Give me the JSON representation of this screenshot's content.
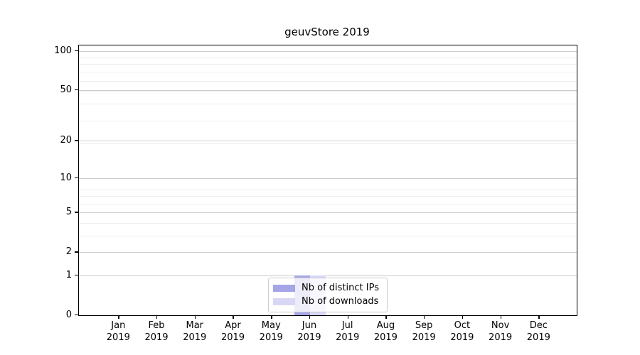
{
  "title": "geuvStore 2019",
  "chart_data": {
    "type": "bar",
    "title": "geuvStore 2019",
    "categories": [
      "Jan",
      "Feb",
      "Mar",
      "Apr",
      "May",
      "Jun",
      "Jul",
      "Aug",
      "Sep",
      "Oct",
      "Nov",
      "Dec"
    ],
    "category_year": "2019",
    "series": [
      {
        "name": "Nb of distinct IPs",
        "color": "#a5a5e7",
        "values": [
          0,
          0,
          0,
          0,
          0,
          1,
          0,
          0,
          0,
          0,
          0,
          0
        ]
      },
      {
        "name": "Nb of downloads",
        "color": "#d8d8f5",
        "values": [
          0,
          0,
          0,
          0,
          0,
          1,
          0,
          0,
          0,
          0,
          0,
          0
        ]
      }
    ],
    "yscale": "log1p",
    "ylim": [
      0,
      110
    ],
    "y_major_ticks": [
      0,
      1,
      2,
      5,
      10,
      20,
      50,
      100
    ],
    "y_minor_gridlines": [
      3,
      4,
      6,
      7,
      8,
      19,
      29,
      39,
      49,
      59,
      69,
      79,
      89
    ],
    "grid": true,
    "legend_position": "lower center"
  },
  "colors": {
    "spine": "#000000",
    "major_grid": "#cdcdcd",
    "minor_grid": "#ededed",
    "legend_border": "#cccccc"
  }
}
